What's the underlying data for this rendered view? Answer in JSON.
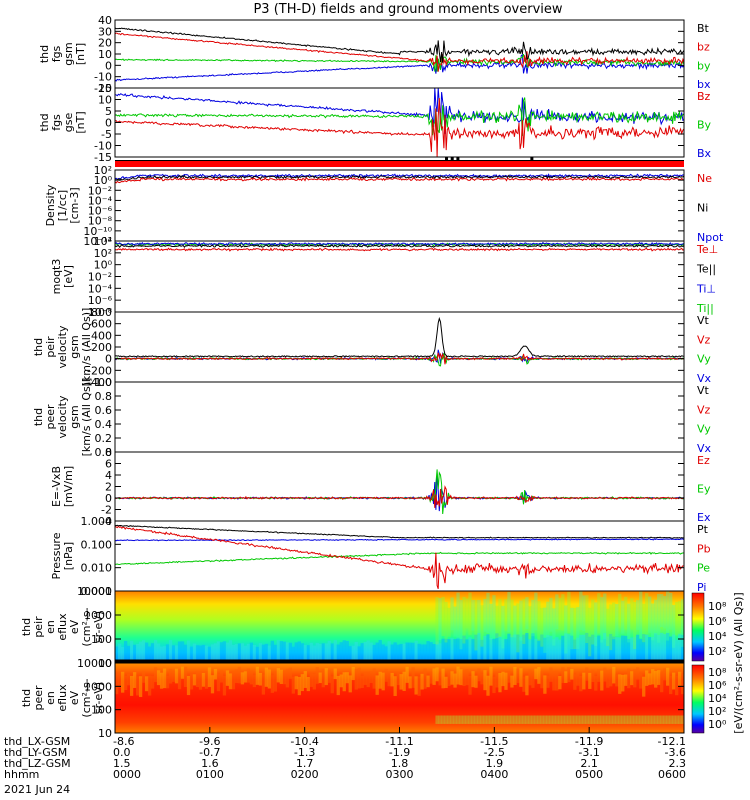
{
  "title": "P3 (TH-D) fields and ground moments overview",
  "colors": {
    "black": "#000000",
    "red": "#e00000",
    "green": "#00c800",
    "blue": "#0000e0"
  },
  "chart_data": [
    {
      "type": "line",
      "ylabel": [
        "thd",
        "fgs",
        "gsm",
        "[nT]"
      ],
      "yticks": [
        "40",
        "30",
        "20",
        "10",
        "0",
        "-10",
        "-20"
      ],
      "ylim": [
        -20,
        40
      ],
      "legend": [
        {
          "name": "Bt",
          "color": "black"
        },
        {
          "name": "bz",
          "color": "red"
        },
        {
          "name": "by",
          "color": "green"
        },
        {
          "name": "bx",
          "color": "blue"
        }
      ]
    },
    {
      "type": "line",
      "ylabel": [
        "thd",
        "fgs",
        "gse",
        "[nT]"
      ],
      "yticks": [
        "15",
        "10",
        "5",
        "0",
        "-5",
        "-10",
        "-15"
      ],
      "ylim": [
        -15,
        18
      ],
      "legend": [
        {
          "name": "Bz",
          "color": "red"
        },
        {
          "name": "By",
          "color": "green"
        },
        {
          "name": "Bx",
          "color": "blue"
        }
      ]
    },
    {
      "type": "line",
      "ylabel": [
        "Density",
        "[1/cc]",
        "[cm-3]"
      ],
      "yticks": [
        "10²",
        "10⁰",
        "10⁻²",
        "10⁻⁴",
        "10⁻⁶",
        "10⁻⁸",
        "10⁻¹⁰",
        "10⁻¹²"
      ],
      "log": true,
      "legend": [
        {
          "name": "Ne",
          "color": "red"
        },
        {
          "name": "Ni",
          "color": "black"
        },
        {
          "name": "Npot",
          "color": "blue"
        }
      ]
    },
    {
      "type": "line",
      "ylabel": [
        "moqt3",
        "[eV]"
      ],
      "yticks": [
        "10⁴",
        "10²",
        "10⁰",
        "10⁻²",
        "10⁻⁴",
        "10⁻⁶",
        "10⁻⁸"
      ],
      "log": true,
      "legend": [
        {
          "name": "Te⊥",
          "color": "red"
        },
        {
          "name": "Te||",
          "color": "black"
        },
        {
          "name": "Ti⊥",
          "color": "blue"
        },
        {
          "name": "Ti||",
          "color": "green"
        }
      ]
    },
    {
      "type": "line",
      "ylabel": [
        "thd",
        "peir",
        "velocity",
        "gsm",
        "[km/s (All Qs)]"
      ],
      "yticks": [
        "800",
        "600",
        "400",
        "200",
        "0",
        "-200",
        "-400"
      ],
      "ylim": [
        -400,
        800
      ],
      "legend": [
        {
          "name": "Vt",
          "color": "black"
        },
        {
          "name": "Vz",
          "color": "red"
        },
        {
          "name": "Vy",
          "color": "green"
        },
        {
          "name": "Vx",
          "color": "blue"
        }
      ]
    },
    {
      "type": "line",
      "ylabel": [
        "thd",
        "peer",
        "velocity",
        "gsm",
        "[km/s (All Qs)]"
      ],
      "yticks": [
        "1.0",
        "0.8",
        "0.6",
        "0.4",
        "0.2",
        "0.0"
      ],
      "ylim": [
        0,
        1
      ],
      "legend": [
        {
          "name": "Vt",
          "color": "black"
        },
        {
          "name": "Vz",
          "color": "red"
        },
        {
          "name": "Vy",
          "color": "green"
        },
        {
          "name": "Vx",
          "color": "blue"
        }
      ]
    },
    {
      "type": "line",
      "ylabel": [
        "E=-VxB",
        "[mV/m]"
      ],
      "yticks": [
        "8",
        "6",
        "4",
        "2",
        "0",
        "-2",
        "-4"
      ],
      "ylim": [
        -4,
        8
      ],
      "legend": [
        {
          "name": "Ez",
          "color": "red"
        },
        {
          "name": "Ey",
          "color": "green"
        },
        {
          "name": "Ex",
          "color": "blue"
        }
      ]
    },
    {
      "type": "line",
      "ylabel": [
        "Pressure",
        "[nPa]"
      ],
      "yticks": [
        "1.000",
        "0.100",
        "0.010",
        "0.001"
      ],
      "log": true,
      "legend": [
        {
          "name": "Pt",
          "color": "black"
        },
        {
          "name": "Pb",
          "color": "red"
        },
        {
          "name": "Pe",
          "color": "green"
        },
        {
          "name": "Pi",
          "color": "blue"
        }
      ]
    },
    {
      "type": "heatmap",
      "ylabel": [
        "thd",
        "peir",
        "en",
        "eflux",
        "eV",
        "(cm²-s-",
        "sr-eV)"
      ],
      "yticks": [
        "10000",
        "1000",
        "100",
        "10"
      ]
    },
    {
      "type": "heatmap",
      "ylabel": [
        "thd",
        "peer",
        "en",
        "eflux",
        "eV",
        "(cm²-s-",
        "sr-eV)"
      ],
      "yticks": [
        "10000",
        "1000",
        "100",
        "10"
      ]
    }
  ],
  "colorbar": {
    "label": "[eV/(cm²-s-sr-eV) (All Qs)]",
    "top_ticks": [
      "10⁸",
      "10⁶",
      "10⁴",
      "10²"
    ],
    "bottom_ticks": [
      "10⁸",
      "10⁶",
      "10⁴",
      "10²",
      "10⁰"
    ]
  },
  "xaxis": {
    "rows": [
      {
        "name": "thd_LX-GSM",
        "values": [
          "-8.6",
          "-9.6",
          "-10.4",
          "-11.1",
          "-11.5",
          "-11.9",
          "-12.1"
        ]
      },
      {
        "name": "thd_LY-GSM",
        "values": [
          "0.0",
          "-0.7",
          "-1.3",
          "-1.9",
          "-2.5",
          "-3.1",
          "-3.6"
        ]
      },
      {
        "name": "thd_LZ-GSM",
        "values": [
          "1.5",
          "1.6",
          "1.7",
          "1.8",
          "1.9",
          "2.1",
          "2.3"
        ]
      },
      {
        "name": "hhmm",
        "values": [
          "0000",
          "0100",
          "0200",
          "0300",
          "0400",
          "0500",
          "0600"
        ]
      }
    ],
    "date": "2021 Jun 24"
  }
}
